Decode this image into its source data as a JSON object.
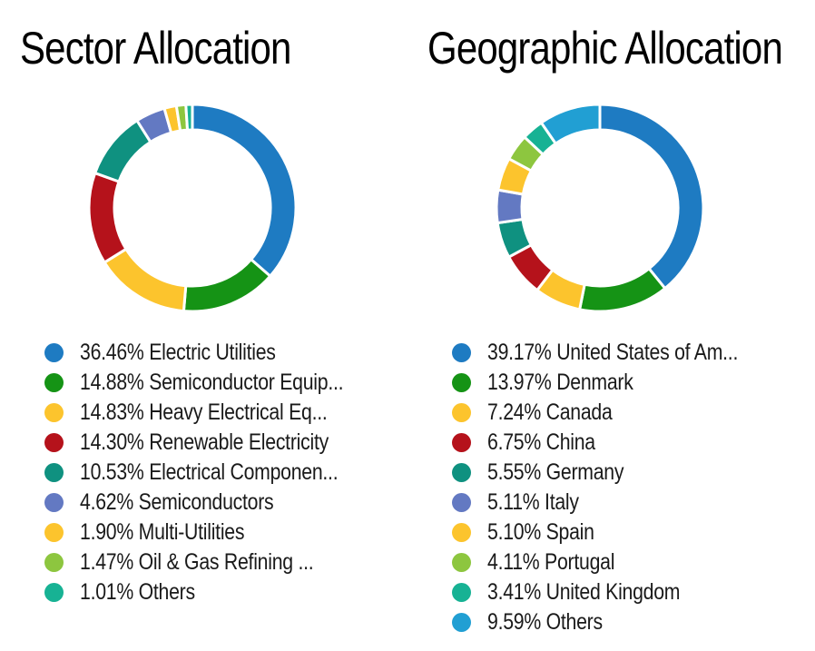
{
  "page": {
    "background": "#FFFFFF",
    "text_color": "#1A1A1A"
  },
  "donut_style": {
    "outer_radius": 114,
    "inner_radius": 86,
    "gap_width": 3,
    "gap_color": "#FFFFFF"
  },
  "chart_data": [
    {
      "type": "pie",
      "subtype": "donut",
      "title": "Sector Allocation",
      "start_angle": "12-oclock",
      "direction": "clockwise",
      "legend_position": "below",
      "total": 100.0,
      "segments": [
        {
          "label": "Electric Utilities",
          "value": 36.46,
          "display": "36.46% Electric Utilities",
          "color": "#1E7BC2"
        },
        {
          "label": "Semiconductor Equip...",
          "value": 14.88,
          "display": "14.88% Semiconductor Equip...",
          "color": "#159315"
        },
        {
          "label": "Heavy Electrical Eq...",
          "value": 14.83,
          "display": "14.83% Heavy Electrical Eq...",
          "color": "#FCC42D"
        },
        {
          "label": "Renewable Electricity",
          "value": 14.3,
          "display": "14.30% Renewable Electricity",
          "color": "#B5121B"
        },
        {
          "label": "Electrical Componen...",
          "value": 10.53,
          "display": "10.53% Electrical Componen...",
          "color": "#0F9180"
        },
        {
          "label": "Semiconductors",
          "value": 4.62,
          "display": "4.62% Semiconductors",
          "color": "#6379C2"
        },
        {
          "label": "Multi-Utilities",
          "value": 1.9,
          "display": "1.90% Multi-Utilities",
          "color": "#FCC42D"
        },
        {
          "label": "Oil & Gas Refining ...",
          "value": 1.47,
          "display": "1.47% Oil & Gas Refining ...",
          "color": "#8DC63F"
        },
        {
          "label": "Others",
          "value": 1.01,
          "display": "1.01% Others",
          "color": "#17B294"
        }
      ]
    },
    {
      "type": "pie",
      "subtype": "donut",
      "title": "Geographic Allocation",
      "start_angle": "12-oclock",
      "direction": "clockwise",
      "legend_position": "below",
      "total": 100.0,
      "segments": [
        {
          "label": "United States of Am...",
          "value": 39.17,
          "display": "39.17% United States of Am...",
          "color": "#1E7BC2"
        },
        {
          "label": "Denmark",
          "value": 13.97,
          "display": "13.97% Denmark",
          "color": "#159315"
        },
        {
          "label": "Canada",
          "value": 7.24,
          "display": "7.24% Canada",
          "color": "#FCC42D"
        },
        {
          "label": "China",
          "value": 6.75,
          "display": "6.75% China",
          "color": "#B5121B"
        },
        {
          "label": "Germany",
          "value": 5.55,
          "display": "5.55% Germany",
          "color": "#0F9180"
        },
        {
          "label": "Italy",
          "value": 5.11,
          "display": "5.11% Italy",
          "color": "#6379C2"
        },
        {
          "label": "Spain",
          "value": 5.1,
          "display": "5.10% Spain",
          "color": "#FCC42D"
        },
        {
          "label": "Portugal",
          "value": 4.11,
          "display": "4.11% Portugal",
          "color": "#8DC63F"
        },
        {
          "label": "United Kingdom",
          "value": 3.41,
          "display": "3.41% United Kingdom",
          "color": "#17B294"
        },
        {
          "label": "Others",
          "value": 9.59,
          "display": "9.59% Others",
          "color": "#219FD3"
        }
      ]
    }
  ]
}
